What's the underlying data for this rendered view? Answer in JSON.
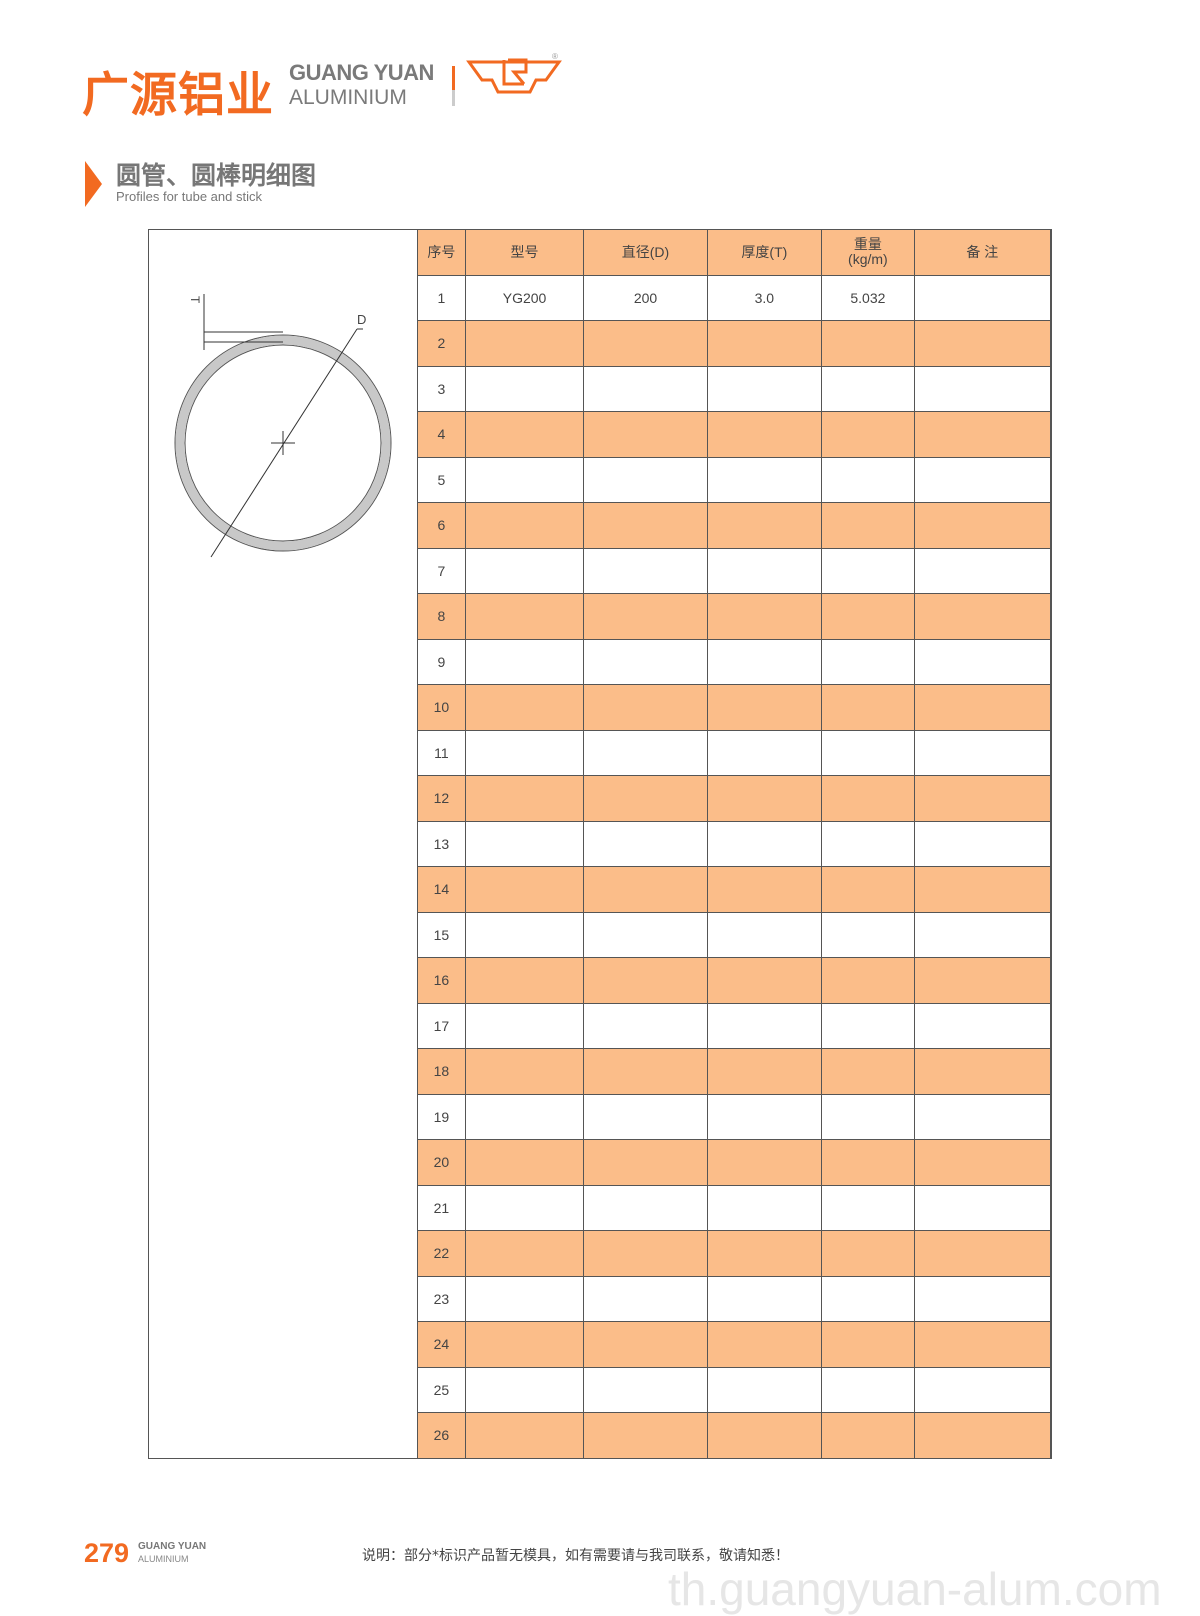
{
  "header": {
    "brand_cn": "广源铝业",
    "brand_en_line1": "GUANG YUAN",
    "brand_en_line2": "ALUMINIUM",
    "trademark": "®"
  },
  "section": {
    "title_cn": "圆管、圆棒明细图",
    "title_en": "Profiles for tube and stick"
  },
  "diagram": {
    "label_thickness": "T",
    "label_diameter": "D"
  },
  "table": {
    "columns": [
      "序号",
      "型号",
      "直径(D)",
      "厚度(T)",
      "重量\n(kg/m)",
      "备 注"
    ],
    "weight_header_line1": "重量",
    "weight_header_line2": "(kg/m)",
    "rows": [
      [
        "1",
        "YG200",
        "200",
        "3.0",
        "5.032",
        ""
      ],
      [
        "2"
      ],
      [
        "3"
      ],
      [
        "4"
      ],
      [
        "5"
      ],
      [
        "6"
      ],
      [
        "7"
      ],
      [
        "8"
      ],
      [
        "9"
      ],
      [
        "10"
      ],
      [
        "11"
      ],
      [
        "12"
      ],
      [
        "13"
      ],
      [
        "14"
      ],
      [
        "15"
      ],
      [
        "16"
      ],
      [
        "17"
      ],
      [
        "18"
      ],
      [
        "19"
      ],
      [
        "20"
      ],
      [
        "21"
      ],
      [
        "22"
      ],
      [
        "23"
      ],
      [
        "24"
      ],
      [
        "25"
      ],
      [
        "26"
      ]
    ]
  },
  "footer": {
    "page_number": "279",
    "brand_line1": "GUANG YUAN",
    "brand_line2": "ALUMINIUM",
    "note": "说明：部分*标识产品暂无模具，如有需要请与我司联系，敬请知悉！"
  },
  "watermark": "th.guangyuan-alum.com",
  "colors": {
    "accent": "#f26a21",
    "row_fill": "#fbbd89"
  }
}
